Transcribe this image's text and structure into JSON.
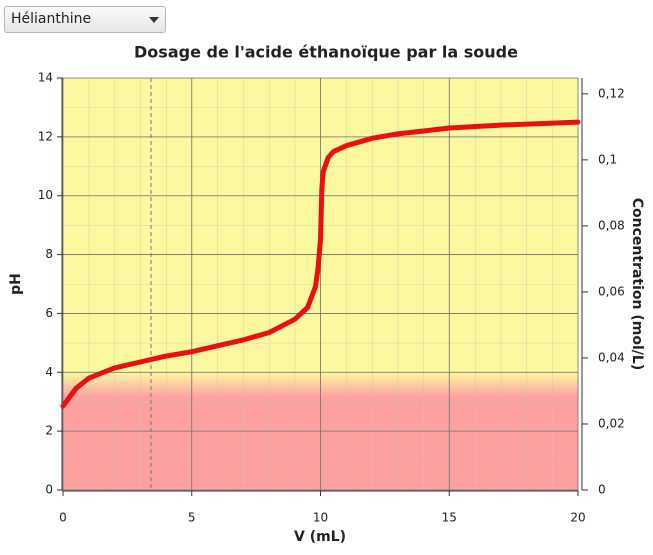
{
  "ui": {
    "indicator": "Hélianthine"
  },
  "chart_data": {
    "type": "line",
    "title": "Dosage de l'acide éthanoïque par la soude",
    "xlabel": "V (mL)",
    "ylabel": "pH",
    "y2label": "Concentration (mol/L)",
    "x": [
      0,
      0.5,
      1,
      2,
      3,
      4,
      5,
      6,
      7,
      8,
      9,
      9.5,
      9.8,
      9.9,
      10,
      10.05,
      10.1,
      10.3,
      10.5,
      11,
      12,
      13,
      14,
      15,
      17,
      20
    ],
    "values": [
      2.85,
      3.45,
      3.8,
      4.15,
      4.35,
      4.55,
      4.7,
      4.9,
      5.1,
      5.35,
      5.8,
      6.2,
      6.9,
      7.5,
      8.5,
      10.2,
      10.8,
      11.3,
      11.5,
      11.7,
      11.95,
      12.1,
      12.2,
      12.3,
      12.4,
      12.5
    ],
    "color": "#e81010",
    "xlim": [
      0,
      20
    ],
    "xticks": [
      0,
      5,
      10,
      15,
      20
    ],
    "ylim": [
      0,
      14
    ],
    "yticks": [
      0,
      2,
      4,
      6,
      8,
      10,
      12,
      14
    ],
    "y2lim": [
      0,
      0.1248
    ],
    "y2ticks": [
      0,
      {
        "value": 0.02,
        "label": "0,02"
      },
      {
        "value": 0.04,
        "label": "0,04"
      },
      {
        "value": 0.06,
        "label": "0,06"
      },
      {
        "value": 0.08,
        "label": "0,08"
      },
      {
        "value": 0.1,
        "label": "0,1"
      },
      {
        "value": 0.12,
        "label": "0,12"
      }
    ],
    "grid": true
  }
}
